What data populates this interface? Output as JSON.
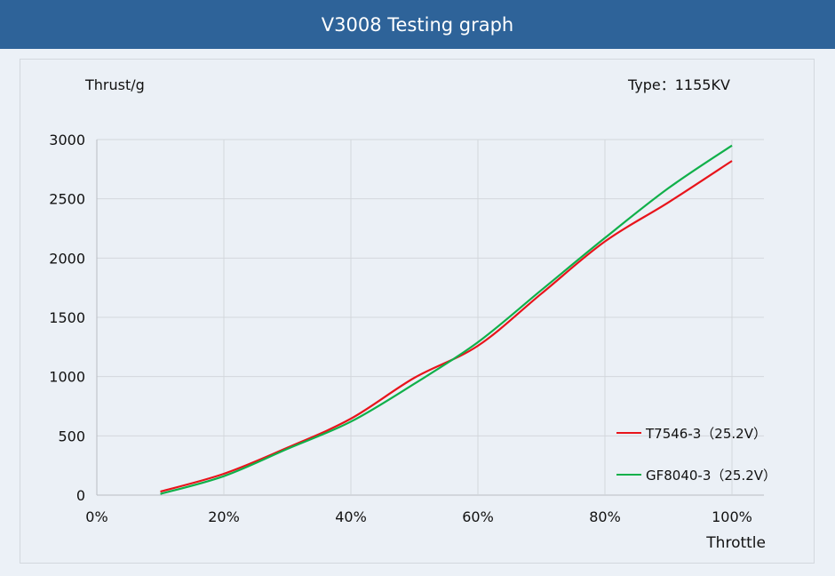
{
  "header": {
    "title": "V3008 Testing graph"
  },
  "chart_data": {
    "type": "line",
    "title": "V3008 Testing graph",
    "ylabel": "Thrust/g",
    "xlabel": "Throttle",
    "annotation": "Type：1155KV",
    "x": [
      10,
      20,
      30,
      40,
      50,
      60,
      70,
      80,
      90,
      100
    ],
    "x_ticks": [
      "0%",
      "20%",
      "40%",
      "60%",
      "80%",
      "100%"
    ],
    "y_ticks": [
      "0",
      "500",
      "1000",
      "1500",
      "2000",
      "2500",
      "3000"
    ],
    "xlim": [
      0,
      100
    ],
    "ylim": [
      0,
      3000
    ],
    "grid": true,
    "legend_position": "bottom-right",
    "series": [
      {
        "name": "T7546-3（25.2V）",
        "color": "#e8141b",
        "values": [
          30,
          180,
          400,
          645,
          990,
          1260,
          1700,
          2140,
          2470,
          2820
        ]
      },
      {
        "name": "GF8040-3（25.2V）",
        "color": "#10b04a",
        "values": [
          10,
          160,
          390,
          620,
          940,
          1290,
          1730,
          2170,
          2590,
          2950
        ]
      }
    ]
  }
}
